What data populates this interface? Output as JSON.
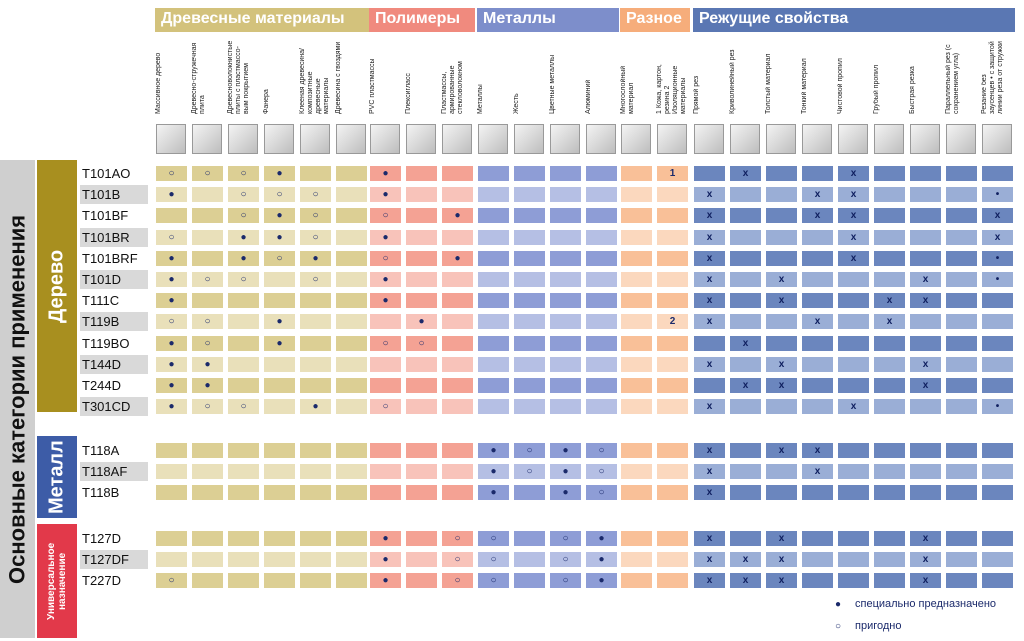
{
  "side_label": "Основные категории применения",
  "groups": [
    {
      "title": "Древесные материалы",
      "columns": [
        "Массивное дерево",
        "Древесно-стружечная плита",
        "Древесноволокнистые плиты с пластмассо-вым покрытием",
        "Фанера",
        "Клееная древесина/ композитные древесные материалы",
        "Древесина с гвоздями"
      ]
    },
    {
      "title": "Полимеры",
      "columns": [
        "PVC пластмассы",
        "Плексигласс",
        "Пластмассы, армированные стекловолокном"
      ]
    },
    {
      "title": "Металлы",
      "columns": [
        "Металлы",
        "Жесть",
        "Цветные металлы",
        "Алюминий"
      ]
    },
    {
      "title": "Разное",
      "columns": [
        "Многослойный материал",
        "1 Кожа, картон, резина 2 Изоляционные материалы"
      ]
    },
    {
      "title": "Режущие свойства",
      "columns": [
        "Прямой рез",
        "Криволинейный рез",
        "Толстый материал",
        "Тонкий материал",
        "Чистовой пропил",
        "Грубый пропил",
        "Быстрая резка",
        "Параллельный рез (с сохранением угла)",
        "Резание без заусенцев • с защитой линии реза от стружки"
      ]
    }
  ],
  "sections": [
    {
      "label": "Дерево",
      "rows": [
        {
          "name": "T101AO",
          "cells": [
            "○",
            "○",
            "○",
            "●",
            null,
            null,
            "●",
            null,
            null,
            null,
            null,
            null,
            null,
            null,
            "1",
            null,
            "x",
            null,
            null,
            "x",
            null,
            null,
            null,
            null
          ]
        },
        {
          "name": "T101B",
          "cells": [
            "●",
            null,
            "○",
            "○",
            "○",
            null,
            "●",
            null,
            null,
            null,
            null,
            null,
            null,
            null,
            null,
            "x",
            null,
            null,
            "x",
            "x",
            null,
            null,
            null,
            "•"
          ]
        },
        {
          "name": "T101BF",
          "cells": [
            null,
            null,
            "○",
            "●",
            "○",
            null,
            "○",
            null,
            "●",
            null,
            null,
            null,
            null,
            null,
            null,
            "x",
            null,
            null,
            "x",
            "x",
            null,
            null,
            null,
            "x"
          ]
        },
        {
          "name": "T101BR",
          "cells": [
            "○",
            null,
            "●",
            "●",
            "○",
            null,
            "●",
            null,
            null,
            null,
            null,
            null,
            null,
            null,
            null,
            "x",
            null,
            null,
            null,
            "x",
            null,
            null,
            null,
            "x"
          ]
        },
        {
          "name": "T101BRF",
          "cells": [
            "●",
            null,
            "●",
            "○",
            "●",
            null,
            "○",
            null,
            "●",
            null,
            null,
            null,
            null,
            null,
            null,
            "x",
            null,
            null,
            null,
            "x",
            null,
            null,
            null,
            "•"
          ]
        },
        {
          "name": "T101D",
          "cells": [
            "●",
            "○",
            "○",
            null,
            "○",
            null,
            "●",
            null,
            null,
            null,
            null,
            null,
            null,
            null,
            null,
            "x",
            null,
            "x",
            null,
            null,
            null,
            "x",
            null,
            "•"
          ]
        },
        {
          "name": "T111C",
          "cells": [
            "●",
            null,
            null,
            null,
            null,
            null,
            "●",
            null,
            null,
            null,
            null,
            null,
            null,
            null,
            null,
            "x",
            null,
            "x",
            null,
            null,
            "x",
            "x",
            null,
            null
          ]
        },
        {
          "name": "T119B",
          "cells": [
            "○",
            "○",
            null,
            "●",
            null,
            null,
            null,
            "●",
            null,
            null,
            null,
            null,
            null,
            null,
            "2",
            "x",
            null,
            null,
            "x",
            null,
            "x",
            null,
            null,
            null
          ]
        },
        {
          "name": "T119BO",
          "cells": [
            "●",
            "○",
            null,
            "●",
            null,
            null,
            "○",
            "○",
            null,
            null,
            null,
            null,
            null,
            null,
            null,
            null,
            "x",
            null,
            null,
            null,
            null,
            null,
            null,
            null
          ]
        },
        {
          "name": "T144D",
          "cells": [
            "●",
            "●",
            null,
            null,
            null,
            null,
            null,
            null,
            null,
            null,
            null,
            null,
            null,
            null,
            null,
            "x",
            null,
            "x",
            null,
            null,
            null,
            "x",
            null,
            null
          ]
        },
        {
          "name": "T244D",
          "cells": [
            "●",
            "●",
            null,
            null,
            null,
            null,
            null,
            null,
            null,
            null,
            null,
            null,
            null,
            null,
            null,
            null,
            "x",
            "x",
            null,
            null,
            null,
            "x",
            null,
            null
          ]
        },
        {
          "name": "T301CD",
          "cells": [
            "●",
            "○",
            "○",
            null,
            "●",
            null,
            "○",
            null,
            null,
            null,
            null,
            null,
            null,
            null,
            null,
            "x",
            null,
            null,
            null,
            "x",
            null,
            null,
            null,
            "•"
          ]
        }
      ]
    },
    {
      "label": "Металл",
      "rows": [
        {
          "name": "T118A",
          "cells": [
            null,
            null,
            null,
            null,
            null,
            null,
            null,
            null,
            null,
            "●",
            "○",
            "●",
            "○",
            null,
            null,
            "x",
            null,
            "x",
            "x",
            null,
            null,
            null,
            null,
            null
          ]
        },
        {
          "name": "T118AF",
          "cells": [
            null,
            null,
            null,
            null,
            null,
            null,
            null,
            null,
            null,
            "●",
            "○",
            "●",
            "○",
            null,
            null,
            "x",
            null,
            null,
            "x",
            null,
            null,
            null,
            null,
            null
          ]
        },
        {
          "name": "T118B",
          "cells": [
            null,
            null,
            null,
            null,
            null,
            null,
            null,
            null,
            null,
            "●",
            null,
            "●",
            "○",
            null,
            null,
            "x",
            null,
            null,
            null,
            null,
            null,
            null,
            null,
            null
          ]
        }
      ]
    },
    {
      "label": "Универсальное назначение",
      "rows": [
        {
          "name": "T127D",
          "cells": [
            null,
            null,
            null,
            null,
            null,
            null,
            "●",
            null,
            "○",
            "○",
            null,
            "○",
            "●",
            null,
            null,
            "x",
            null,
            "x",
            null,
            null,
            null,
            "x",
            null,
            null
          ]
        },
        {
          "name": "T127DF",
          "cells": [
            null,
            null,
            null,
            null,
            null,
            null,
            "●",
            null,
            "○",
            "○",
            null,
            "○",
            "●",
            null,
            null,
            "x",
            "x",
            "x",
            null,
            null,
            null,
            "x",
            null,
            null
          ]
        },
        {
          "name": "T227D",
          "cells": [
            "○",
            null,
            null,
            null,
            null,
            null,
            "●",
            null,
            "○",
            "○",
            null,
            "○",
            "●",
            null,
            null,
            "x",
            "x",
            "x",
            null,
            null,
            null,
            "x",
            null,
            null
          ]
        }
      ]
    }
  ],
  "legend": [
    {
      "symbol": "●",
      "text": "специально предназначено"
    },
    {
      "symbol": "○",
      "text": "пригодно"
    }
  ]
}
